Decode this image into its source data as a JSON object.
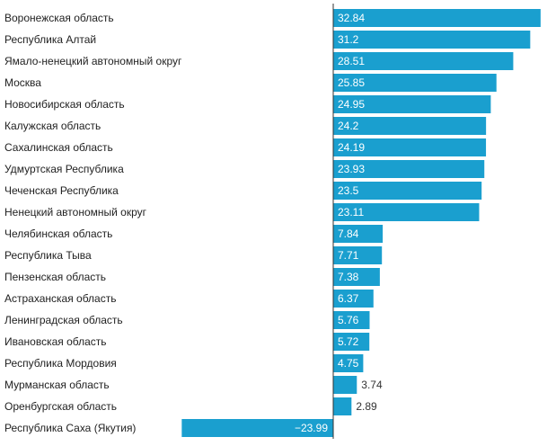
{
  "chart_data": {
    "type": "bar",
    "orientation": "horizontal",
    "title": "",
    "xlabel": "",
    "ylabel": "",
    "bar_color": "#1a9fcf",
    "grid": false,
    "xlim": [
      -23.99,
      32.84
    ],
    "categories": [
      "Воронежская область",
      "Республика Алтай",
      "Ямало-ненецкий автономный округ",
      "Москва",
      "Новосибирская область",
      "Калужская область",
      "Сахалинская область",
      "Удмуртская Республика",
      "Чеченская Республика",
      "Ненецкий автономный округ",
      "Челябинская область",
      "Республика Тыва",
      "Пензенская область",
      "Астраханская область",
      "Ленинградская область",
      "Ивановская область",
      "Республика Мордовия",
      "Мурманская область",
      "Оренбургская область",
      "Республика Саха (Якутия)"
    ],
    "values": [
      32.84,
      31.2,
      28.51,
      25.85,
      24.95,
      24.2,
      24.19,
      23.93,
      23.5,
      23.11,
      7.84,
      7.71,
      7.38,
      6.37,
      5.76,
      5.72,
      4.75,
      3.74,
      2.89,
      -23.99
    ],
    "value_labels": [
      "32.84",
      "31.2",
      "28.51",
      "25.85",
      "24.95",
      "24.2",
      "24.19",
      "23.93",
      "23.5",
      "23.11",
      "7.84",
      "7.71",
      "7.38",
      "6.37",
      "5.76",
      "5.72",
      "4.75",
      "3.74",
      "2.89",
      "−23.99"
    ]
  }
}
